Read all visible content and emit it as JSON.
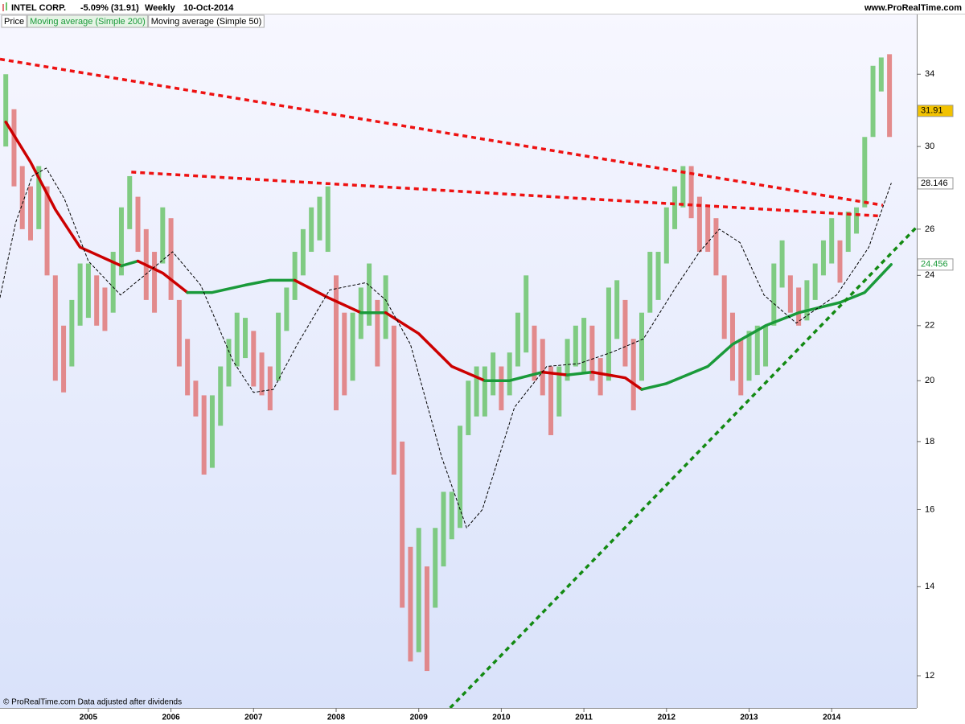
{
  "header": {
    "symbol": "INTEL CORP.",
    "change": "-5.09% (31.91)",
    "period": "Weekly",
    "date": "10-Oct-2014",
    "site": "www.ProRealTime.com"
  },
  "footer": "© ProRealTime.com  Data adjusted after dividends",
  "chart_data": {
    "type": "range",
    "log_scale": true,
    "grid": false,
    "xlim": [
      2003.93,
      2015.03
    ],
    "xticks": [
      2005,
      2006,
      2007,
      2008,
      2009,
      2010,
      2011,
      2012,
      2013,
      2014
    ],
    "ylim": [
      11.35,
      37.6
    ],
    "yticks": [
      12,
      14,
      16,
      18,
      20,
      22,
      24,
      26,
      28,
      30,
      34
    ],
    "price": {
      "name": "Price",
      "up_color": "#6cc46c",
      "down_color": "#e07878",
      "last": 31.91,
      "last_color": "#f2c200",
      "x": [
        2004.0,
        2004.1,
        2004.2,
        2004.3,
        2004.4,
        2004.5,
        2004.6,
        2004.7,
        2004.8,
        2004.9,
        2005.0,
        2005.1,
        2005.2,
        2005.3,
        2005.4,
        2005.5,
        2005.6,
        2005.7,
        2005.8,
        2005.9,
        2006.0,
        2006.1,
        2006.2,
        2006.3,
        2006.4,
        2006.5,
        2006.6,
        2006.7,
        2006.8,
        2006.9,
        2007.0,
        2007.1,
        2007.2,
        2007.3,
        2007.4,
        2007.5,
        2007.6,
        2007.7,
        2007.8,
        2007.9,
        2008.0,
        2008.1,
        2008.2,
        2008.3,
        2008.4,
        2008.5,
        2008.6,
        2008.7,
        2008.8,
        2008.9,
        2009.0,
        2009.1,
        2009.2,
        2009.3,
        2009.4,
        2009.5,
        2009.6,
        2009.7,
        2009.8,
        2009.9,
        2010.0,
        2010.1,
        2010.2,
        2010.3,
        2010.4,
        2010.5,
        2010.6,
        2010.7,
        2010.8,
        2010.9,
        2011.0,
        2011.1,
        2011.2,
        2011.3,
        2011.4,
        2011.5,
        2011.6,
        2011.7,
        2011.8,
        2011.9,
        2012.0,
        2012.1,
        2012.2,
        2012.3,
        2012.4,
        2012.5,
        2012.6,
        2012.7,
        2012.8,
        2012.9,
        2013.0,
        2013.1,
        2013.2,
        2013.3,
        2013.4,
        2013.5,
        2013.6,
        2013.7,
        2013.8,
        2013.9,
        2014.0,
        2014.1,
        2014.2,
        2014.3,
        2014.4,
        2014.5,
        2014.6,
        2014.7
      ],
      "high": [
        34,
        32,
        29,
        28,
        29,
        28,
        24,
        22,
        23,
        24.5,
        24.5,
        24,
        23.5,
        25,
        27,
        28.5,
        27.5,
        26,
        25,
        27,
        26.5,
        23,
        21.5,
        20,
        19.5,
        19.5,
        20.5,
        21.5,
        22.5,
        22.3,
        21.8,
        21,
        20.5,
        22.5,
        23.5,
        25,
        26,
        27,
        27.5,
        28,
        24,
        22.5,
        22.5,
        23.5,
        24.5,
        23,
        24,
        22,
        18,
        15,
        15.5,
        14.5,
        15.5,
        16.5,
        16.5,
        18.5,
        20,
        20.5,
        20.5,
        21,
        20.5,
        21,
        22.5,
        24,
        22,
        21.5,
        20.5,
        20.5,
        21.5,
        22,
        22.3,
        22,
        20.8,
        23.5,
        23.8,
        23,
        21.5,
        22.5,
        25,
        25,
        27,
        28,
        29,
        29,
        27.5,
        27,
        26.5,
        24,
        22.5,
        21.5,
        21.8,
        22,
        22,
        24.5,
        25.5,
        24,
        23.5,
        23.8,
        24.5,
        25.5,
        26.5,
        25.5,
        26.8,
        27,
        30.5,
        34.5,
        35,
        35.2
      ],
      "low": [
        30,
        28,
        26,
        25.5,
        26,
        24,
        20,
        19.6,
        20.5,
        22,
        22.3,
        22,
        21.8,
        22.5,
        24,
        26,
        25,
        23,
        22.5,
        24.5,
        23,
        20.5,
        19.5,
        18.8,
        17,
        17.2,
        18.5,
        19.8,
        20.5,
        20.8,
        19.8,
        19.5,
        19,
        20,
        21.8,
        23,
        24,
        25,
        25.5,
        25,
        19,
        19.5,
        20,
        21.5,
        22,
        20.5,
        21.5,
        17,
        13.5,
        12.3,
        12.5,
        12.1,
        13.5,
        14.5,
        15.2,
        15.5,
        18.2,
        18.8,
        18.8,
        19.5,
        19,
        19.5,
        20.5,
        21,
        20,
        19.5,
        18.2,
        18.8,
        20,
        20.5,
        20.3,
        20,
        19.5,
        20,
        21.5,
        20.5,
        19,
        20,
        22.5,
        23,
        24.5,
        26,
        27,
        26.5,
        25,
        25,
        24,
        21.5,
        20,
        19.5,
        20,
        20.2,
        20.5,
        22,
        23.5,
        22.5,
        22,
        22.2,
        23,
        24,
        24.5,
        23.7,
        25,
        25.8,
        27,
        30.5,
        33,
        30.5
      ]
    },
    "series": [
      {
        "name": "Moving average (Simple 200)",
        "color": "#1a9a3a",
        "down_color": "#cc0000",
        "style": "solid",
        "label_color": "#1a9a3a",
        "x": [
          2004.0,
          2004.3,
          2004.6,
          2004.9,
          2005.4,
          2005.6,
          2005.9,
          2006.2,
          2006.5,
          2006.9,
          2007.2,
          2007.5,
          2007.9,
          2008.3,
          2008.6,
          2009.0,
          2009.4,
          2009.8,
          2010.1,
          2010.5,
          2010.8,
          2011.1,
          2011.5,
          2011.7,
          2012.0,
          2012.5,
          2012.8,
          2013.2,
          2013.6,
          2014.1,
          2014.4,
          2014.72
        ],
        "values": [
          31.3,
          29.2,
          26.9,
          25.2,
          24.4,
          24.6,
          24.1,
          23.3,
          23.3,
          23.6,
          23.8,
          23.8,
          23.1,
          22.5,
          22.5,
          21.7,
          20.5,
          20.0,
          20.0,
          20.3,
          20.2,
          20.3,
          20.1,
          19.7,
          19.9,
          20.5,
          21.3,
          22.0,
          22.5,
          22.9,
          23.3,
          24.456
        ]
      },
      {
        "name": "Moving average (Simple 50)",
        "color": "#000000",
        "style": "dashed",
        "label_color": "#000000",
        "x": [
          2003.93,
          2004.12,
          2004.32,
          2004.49,
          2004.71,
          2005.0,
          2005.39,
          2005.68,
          2006.02,
          2006.36,
          2006.75,
          2007.0,
          2007.24,
          2007.53,
          2007.92,
          2008.36,
          2008.6,
          2008.9,
          2009.28,
          2009.58,
          2009.77,
          2010.16,
          2010.55,
          2010.94,
          2011.33,
          2011.72,
          2012.11,
          2012.4,
          2012.64,
          2012.89,
          2013.18,
          2013.57,
          2014.06,
          2014.45,
          2014.72
        ],
        "values": [
          23.1,
          26.3,
          28.5,
          28.9,
          27.4,
          24.6,
          23.2,
          24,
          25,
          23.6,
          20.7,
          19.6,
          19.7,
          21.3,
          23.4,
          23.7,
          23,
          21.3,
          17.5,
          15.5,
          16,
          19.1,
          20.5,
          20.6,
          21,
          21.5,
          23.5,
          25,
          26,
          25.4,
          23.2,
          22.1,
          23.2,
          25.2,
          28.146
        ]
      }
    ],
    "trendlines": [
      {
        "x": [
          2003.93,
          2014.62
        ],
        "y": [
          34.9,
          27.1
        ],
        "color": "#ee1111"
      },
      {
        "x": [
          2005.52,
          2014.59
        ],
        "y": [
          28.7,
          26.6
        ],
        "color": "#ee1111"
      },
      {
        "x": [
          2009.38,
          2015.03
        ],
        "y": [
          11.35,
          26.1
        ],
        "color": "#138a13"
      }
    ]
  }
}
